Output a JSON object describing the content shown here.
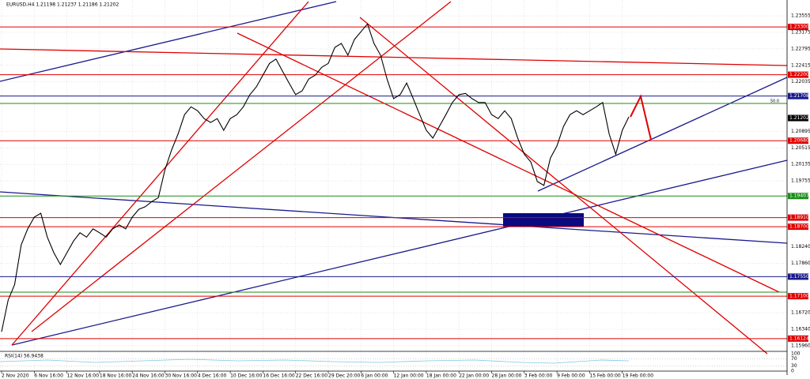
{
  "chart_data": {
    "type": "line",
    "title": "EURUSD,H4  1.21198 1.21237 1.21186 1.21202",
    "categories": [
      "2 Nov 2020",
      null,
      null,
      null,
      null,
      "6 Nov 16:00",
      null,
      null,
      null,
      null,
      "12 Nov 16:00",
      null,
      null,
      null,
      null,
      "18 Nov 16:00",
      null,
      null,
      null,
      null,
      "24 Nov 16:00",
      null,
      null,
      null,
      null,
      "30 Nov 16:00",
      null,
      null,
      null,
      null,
      "4 Dec 16:00",
      null,
      null,
      null,
      null,
      "10 Dec 16:00",
      null,
      null,
      null,
      null,
      "16 Dec 16:00",
      null,
      null,
      null,
      null,
      "22 Dec 16:00",
      null,
      null,
      null,
      null,
      "29 Dec 20:00",
      null,
      null,
      null,
      null,
      "6 Jan 00:00",
      null,
      null,
      null,
      null,
      "12 Jan 00:00",
      null,
      null,
      null,
      null,
      "18 Jan 00:00",
      null,
      null,
      null,
      null,
      "22 Jan 00:00",
      null,
      null,
      null,
      null,
      "28 Jan 00:00",
      null,
      null,
      null,
      null,
      "3 Feb 00:00",
      null,
      null,
      null,
      null,
      "9 Feb 00:00",
      null,
      null,
      null,
      null,
      "15 Feb 00:00",
      null,
      null,
      null,
      null,
      "19 Feb 00:00",
      null
    ],
    "series": [
      {
        "name": "EURUSD",
        "color": "#000000",
        "values": [
          1.1628,
          1.1701,
          1.1737,
          1.1828,
          1.1865,
          1.1892,
          1.1901,
          1.1846,
          1.181,
          1.1783,
          1.181,
          1.1837,
          1.1856,
          1.1846,
          1.1865,
          1.1856,
          1.1846,
          1.1865,
          1.1874,
          1.1865,
          1.1892,
          1.191,
          1.1916,
          1.1928,
          1.1937,
          1.2001,
          1.2046,
          1.2083,
          1.2128,
          1.2146,
          1.2137,
          1.2119,
          1.211,
          1.2119,
          1.2092,
          1.2119,
          1.2128,
          1.2146,
          1.2174,
          1.2192,
          1.2219,
          1.2246,
          1.2256,
          1.2228,
          1.2201,
          1.2174,
          1.2183,
          1.221,
          1.2219,
          1.2237,
          1.2246,
          1.2283,
          1.2292,
          1.2265,
          1.2301,
          1.2319,
          1.2337,
          1.2292,
          1.2265,
          1.221,
          1.2165,
          1.2174,
          1.2201,
          1.2165,
          1.2128,
          1.2092,
          1.2074,
          1.2101,
          1.2128,
          1.2156,
          1.2174,
          1.2177,
          1.2165,
          1.2156,
          1.2156,
          1.2128,
          1.2119,
          1.2137,
          1.2119,
          1.2074,
          1.2037,
          1.2019,
          1.1974,
          1.1965,
          1.2028,
          1.2056,
          1.2101,
          1.2128,
          1.2137,
          1.2128,
          1.2137,
          1.2146,
          1.2156,
          1.2083,
          1.2037,
          1.2092,
          1.2123
        ]
      }
    ],
    "ylim": [
      1.1583,
      1.2392
    ],
    "yticks": [
      1.23555,
      1.23175,
      1.22795,
      1.22415,
      1.22035,
      1.20895,
      1.20515,
      1.20135,
      1.19755,
      {
        "value": 1.1824,
        "label": "1.18240"
      },
      {
        "value": 1.1786,
        "label": "1.17860"
      },
      {
        "value": 1.1672,
        "label": "1.16720"
      },
      {
        "value": 1.1634,
        "label": "1.16340"
      },
      {
        "value": 1.1596,
        "label": "1.15960"
      }
    ],
    "levels": [
      {
        "value": 1.233,
        "label": "1.23300",
        "color": "#e00000"
      },
      {
        "value": 1.222,
        "label": "1.22200",
        "color": "#e00000"
      },
      {
        "value": 1.21708,
        "label": "1.21708",
        "color": "#1a1a8c"
      },
      {
        "value": 1.21202,
        "label": "1.21202",
        "color": "#000000"
      },
      {
        "value": 1.2068,
        "label": "1.20680",
        "color": "#e00000"
      },
      {
        "value": 1.19407,
        "label": "1.19407",
        "color": "#1a8c1a"
      },
      {
        "value": 1.1891,
        "label": "1.18910",
        "color": "#e00000"
      },
      {
        "value": 1.187,
        "label": "1.18700",
        "color": "#e00000"
      },
      {
        "value": 1.1755,
        "label": "1.17550",
        "color": "#1a1a8c"
      },
      {
        "value": 1.171,
        "label": "1.17100",
        "color": "#e00000"
      },
      {
        "value": 1.16124,
        "label": "1.16124",
        "color": "#e00000"
      }
    ],
    "fib_label": "50.0",
    "indicator": {
      "title": "RSI(14) 56.9438",
      "ticks": [
        100,
        70,
        30,
        0
      ]
    }
  }
}
